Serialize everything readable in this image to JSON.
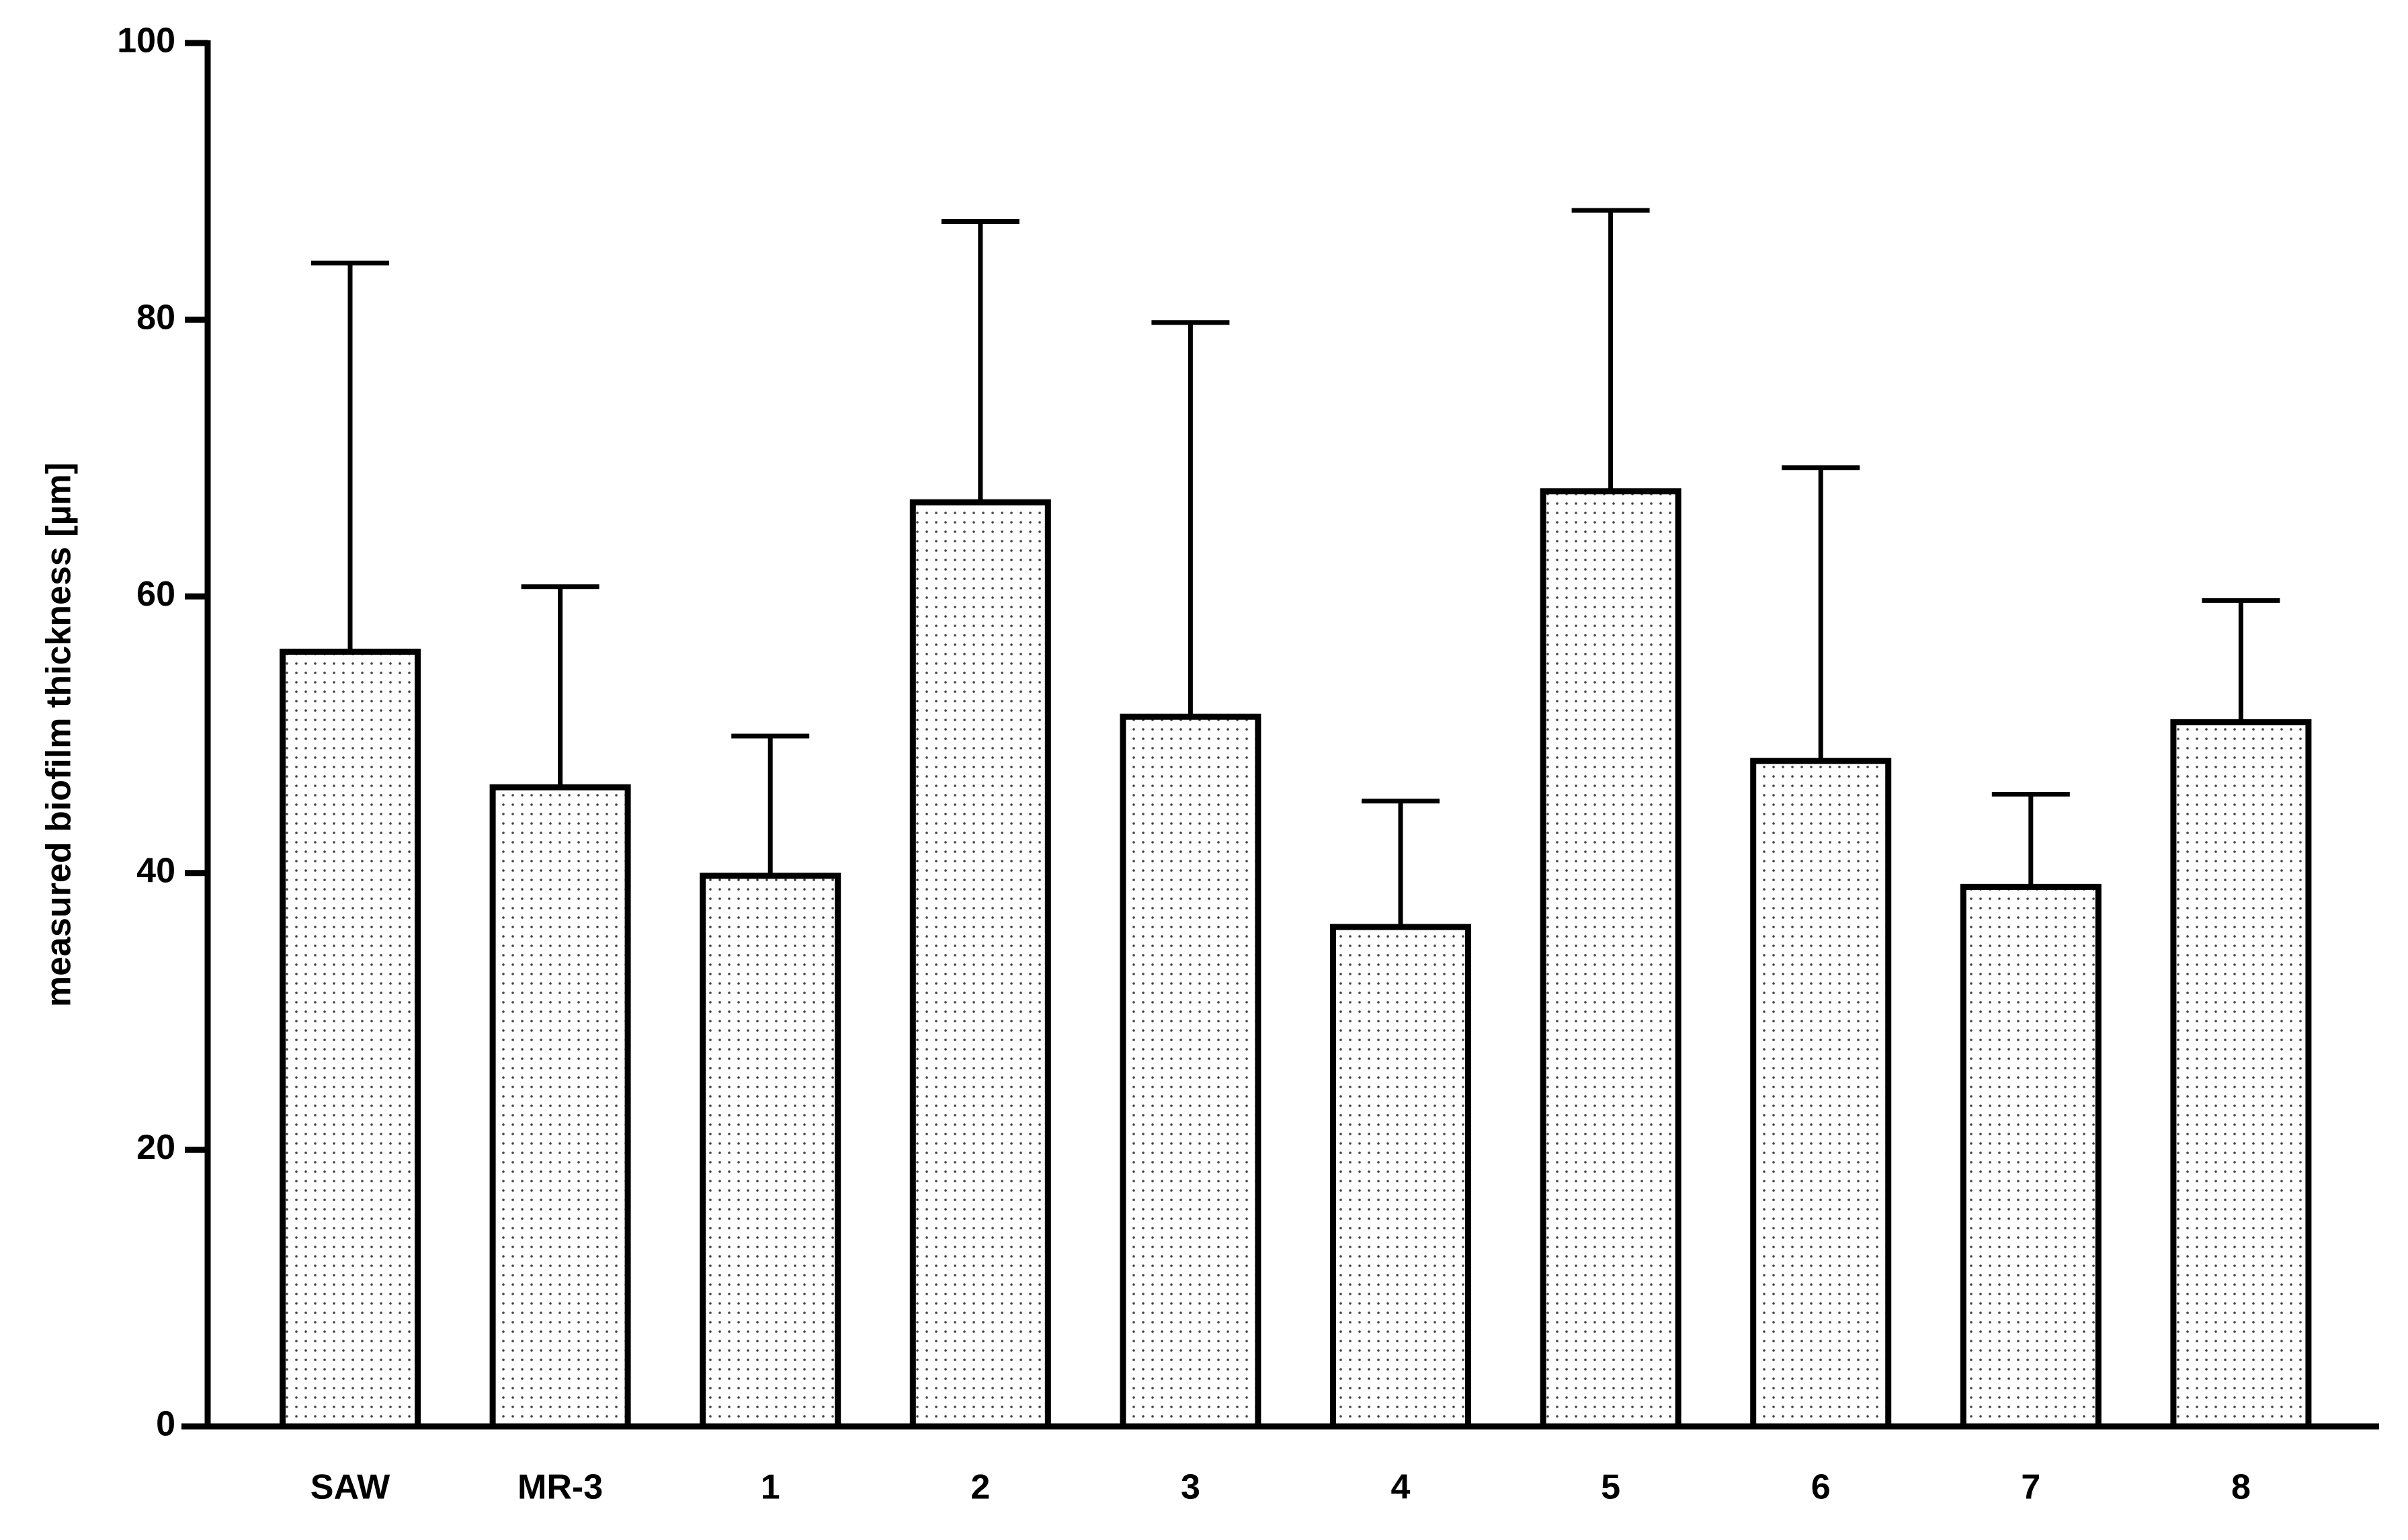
{
  "chart_data": {
    "type": "bar",
    "y_label": "measured biofilm thickness [µm]",
    "categories": [
      "SAW",
      "MR-3",
      "1",
      "2",
      "3",
      "4",
      "5",
      "6",
      "7",
      "8"
    ],
    "values": [
      56.0,
      46.2,
      39.8,
      66.8,
      51.3,
      36.1,
      67.6,
      48.1,
      39.0,
      50.9
    ],
    "errors": [
      28.1,
      14.5,
      10.1,
      20.3,
      28.5,
      9.1,
      20.3,
      21.2,
      6.7,
      8.8
    ],
    "color": "#000000",
    "ylim": [
      0,
      100
    ],
    "yticks": [
      0,
      20,
      40,
      60,
      80,
      100
    ]
  }
}
